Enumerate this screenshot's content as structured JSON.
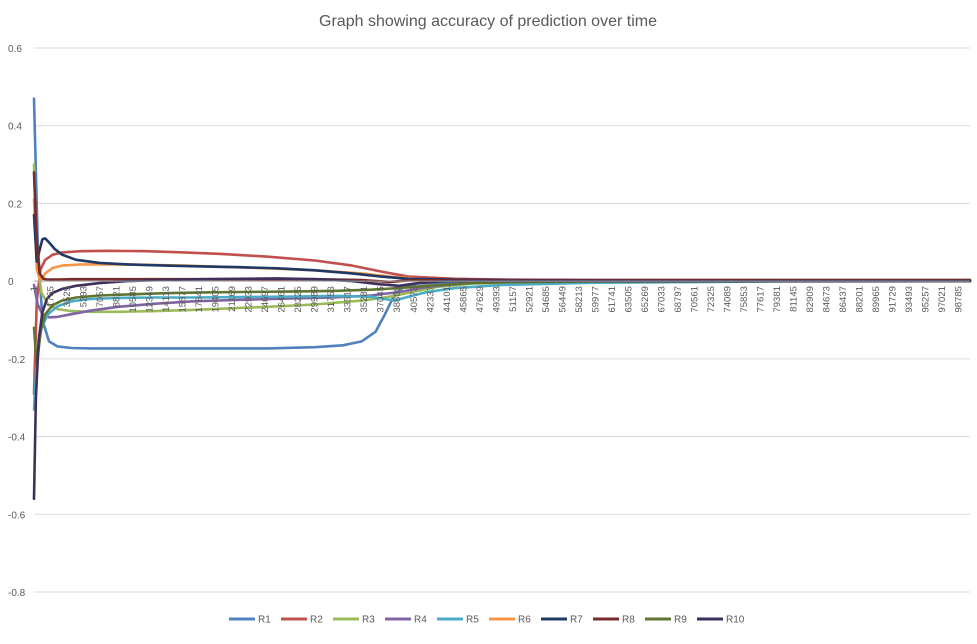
{
  "chart_data": {
    "type": "line",
    "title": "Graph showing accuracy of prediction over time",
    "xlabel": "",
    "ylabel": "",
    "ylim": [
      -0.8,
      0.6
    ],
    "yticks": [
      "0.6",
      "0.4",
      "0.2",
      "0",
      "-0.2",
      "-0.4",
      "-0.6",
      "-0.8"
    ],
    "ytick_values": [
      0.6,
      0.4,
      0.2,
      0,
      -0.2,
      -0.4,
      -0.6,
      -0.8
    ],
    "grid": true,
    "legend_position": "bottom",
    "x_range": [
      1,
      100000
    ],
    "xticks": [
      "1",
      "1765",
      "3529",
      "5293",
      "7057",
      "8821",
      "10585",
      "12349",
      "14113",
      "15877",
      "17641",
      "19405",
      "21169",
      "22933",
      "24697",
      "26461",
      "28225",
      "29989",
      "31753",
      "33517",
      "35281",
      "37045",
      "38809",
      "40573",
      "42337",
      "44101",
      "45865",
      "47629",
      "49393",
      "51157",
      "52921",
      "54685",
      "56449",
      "58213",
      "59977",
      "61741",
      "63505",
      "65269",
      "67033",
      "68797",
      "70561",
      "72325",
      "74089",
      "75853",
      "77617",
      "79381",
      "81145",
      "82909",
      "84673",
      "86437",
      "88201",
      "89965",
      "91729",
      "93493",
      "95257",
      "97021",
      "98785"
    ],
    "series": [
      {
        "name": "R1",
        "color": "#4F81BD",
        "x": [
          1,
          400,
          900,
          1600,
          2500,
          4000,
          6000,
          10000,
          15000,
          20000,
          25000,
          30000,
          33000,
          35000,
          36500,
          37500,
          38500,
          39500,
          41000,
          45000,
          50000,
          60000,
          80000,
          100000
        ],
        "y": [
          0.47,
          0.1,
          -0.1,
          -0.155,
          -0.168,
          -0.172,
          -0.173,
          -0.173,
          -0.173,
          -0.173,
          -0.173,
          -0.17,
          -0.165,
          -0.155,
          -0.13,
          -0.085,
          -0.035,
          -0.015,
          -0.006,
          -0.002,
          0.0,
          0.001,
          0.002,
          0.002
        ]
      },
      {
        "name": "R2",
        "color": "#C0504D",
        "x": [
          1,
          300,
          700,
          1200,
          2000,
          3000,
          5000,
          8000,
          12000,
          16000,
          20000,
          25000,
          30000,
          34000,
          37000,
          40000,
          45000,
          50000,
          60000,
          80000,
          100000
        ],
        "y": [
          -0.29,
          -0.05,
          0.03,
          0.055,
          0.068,
          0.074,
          0.077,
          0.078,
          0.077,
          0.074,
          0.07,
          0.063,
          0.053,
          0.04,
          0.025,
          0.012,
          0.006,
          0.004,
          0.003,
          0.003,
          0.003
        ]
      },
      {
        "name": "R3",
        "color": "#9BBB59",
        "x": [
          1,
          300,
          800,
          1500,
          2500,
          4000,
          6000,
          9000,
          13000,
          17000,
          21000,
          25000,
          30000,
          35000,
          38000,
          40000,
          43000,
          47000,
          55000,
          70000,
          100000
        ],
        "y": [
          0.3,
          0.05,
          -0.03,
          -0.06,
          -0.072,
          -0.077,
          -0.079,
          -0.079,
          -0.077,
          -0.074,
          -0.07,
          -0.066,
          -0.06,
          -0.05,
          -0.04,
          -0.03,
          -0.015,
          -0.006,
          -0.002,
          0.0,
          0.0
        ]
      },
      {
        "name": "R4",
        "color": "#8064A2",
        "x": [
          1,
          400,
          900,
          1600,
          2500,
          4000,
          6000,
          9000,
          13000,
          17000,
          22000,
          27000,
          32000,
          36000,
          39000,
          42000,
          46000,
          50000,
          60000,
          80000,
          100000
        ],
        "y": [
          -0.01,
          -0.06,
          -0.085,
          -0.093,
          -0.092,
          -0.085,
          -0.076,
          -0.066,
          -0.058,
          -0.052,
          -0.048,
          -0.045,
          -0.042,
          -0.037,
          -0.028,
          -0.015,
          -0.006,
          -0.002,
          0.0,
          0.0,
          0.0
        ]
      },
      {
        "name": "R5",
        "color": "#4BACC6",
        "x": [
          1,
          300,
          800,
          1500,
          2500,
          4000,
          6000,
          9000,
          13000,
          17000,
          22000,
          27000,
          32000,
          36000,
          38500,
          40000,
          42000,
          45000,
          50000,
          60000,
          80000,
          100000
        ],
        "y": [
          -0.33,
          -0.2,
          -0.12,
          -0.085,
          -0.065,
          -0.052,
          -0.046,
          -0.043,
          -0.042,
          -0.042,
          -0.041,
          -0.04,
          -0.038,
          -0.04,
          -0.05,
          -0.04,
          -0.028,
          -0.018,
          -0.01,
          -0.004,
          -0.001,
          0.0
        ]
      },
      {
        "name": "R6",
        "color": "#F79646",
        "x": [
          1,
          300,
          700,
          1200,
          2000,
          3000,
          5000,
          8000,
          12000,
          16000,
          20000,
          25000,
          30000,
          35000,
          38000,
          41000,
          45000,
          50000,
          60000,
          80000,
          100000
        ],
        "y": [
          0.21,
          0.03,
          0.0,
          0.02,
          0.034,
          0.04,
          0.043,
          0.043,
          0.042,
          0.04,
          0.037,
          0.033,
          0.028,
          0.02,
          0.012,
          0.006,
          0.003,
          0.001,
          0.0,
          0.0,
          0.0
        ]
      },
      {
        "name": "R7",
        "color": "#1F3864",
        "x": [
          1,
          300,
          600,
          900,
          1200,
          1600,
          2200,
          3000,
          4500,
          7000,
          10000,
          14000,
          18000,
          22000,
          26000,
          30000,
          34000,
          37000,
          40000,
          45000,
          50000,
          60000,
          80000,
          100000
        ],
        "y": [
          0.17,
          0.05,
          0.08,
          0.108,
          0.11,
          0.1,
          0.083,
          0.068,
          0.055,
          0.047,
          0.043,
          0.04,
          0.038,
          0.036,
          0.033,
          0.028,
          0.02,
          0.012,
          0.006,
          0.004,
          0.003,
          0.002,
          0.002,
          0.002
        ]
      },
      {
        "name": "R8",
        "color": "#772C2A",
        "x": [
          1,
          300,
          600,
          1000,
          1500,
          2500,
          4000,
          7000,
          12000,
          20000,
          30000,
          35000,
          38000,
          40000,
          45000,
          55000,
          70000,
          100000
        ],
        "y": [
          0.28,
          0.1,
          0.02,
          0.006,
          0.004,
          0.004,
          0.005,
          0.005,
          0.005,
          0.005,
          0.005,
          0.003,
          -0.002,
          0.002,
          0.003,
          0.003,
          0.003,
          0.003
        ]
      },
      {
        "name": "R9",
        "color": "#5F7530",
        "x": [
          1,
          300,
          700,
          1200,
          2000,
          3000,
          4500,
          7000,
          10000,
          14000,
          18000,
          22000,
          27000,
          32000,
          36000,
          39000,
          42000,
          46000,
          50000,
          60000,
          80000,
          100000
        ],
        "y": [
          -0.12,
          -0.22,
          -0.13,
          -0.085,
          -0.062,
          -0.05,
          -0.042,
          -0.037,
          -0.034,
          -0.031,
          -0.029,
          -0.028,
          -0.027,
          -0.025,
          -0.022,
          -0.018,
          -0.012,
          -0.006,
          -0.003,
          -0.001,
          0.0,
          0.0
        ]
      },
      {
        "name": "R10",
        "color": "#3E2F5B",
        "x": [
          1,
          200,
          500,
          900,
          1400,
          2000,
          3000,
          4500,
          7000,
          10000,
          14000,
          18000,
          22000,
          26000,
          30000,
          34000,
          37000,
          39000,
          41000,
          44000,
          48000,
          55000,
          70000,
          100000
        ],
        "y": [
          -0.56,
          -0.3,
          -0.15,
          -0.08,
          -0.045,
          -0.03,
          -0.02,
          -0.012,
          -0.005,
          0.0,
          0.003,
          0.005,
          0.006,
          0.007,
          0.005,
          0.0,
          -0.008,
          -0.012,
          -0.005,
          0.0,
          0.001,
          0.001,
          0.0,
          0.0
        ]
      }
    ]
  }
}
